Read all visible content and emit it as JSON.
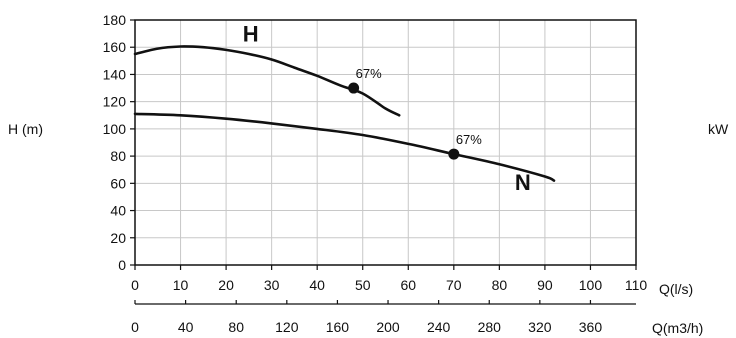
{
  "chart_data": {
    "type": "line",
    "title": "",
    "ylabel": "H (m)",
    "ylabel_right": "kW",
    "xlabel": "Q(l/s)",
    "xlabel_secondary": "Q(m3/h)",
    "xlim": [
      0,
      110
    ],
    "ylim": [
      0,
      180
    ],
    "x_ticks": [
      "0",
      "10",
      "20",
      "30",
      "40",
      "50",
      "60",
      "70",
      "80",
      "90",
      "100",
      "110"
    ],
    "y_ticks": [
      "0",
      "20",
      "40",
      "60",
      "80",
      "100",
      "120",
      "140",
      "160",
      "180"
    ],
    "secondary_x_ticks": [
      "0",
      "40",
      "80",
      "120",
      "160",
      "200",
      "240",
      "280",
      "320",
      "360"
    ],
    "grid": true,
    "series": [
      {
        "name": "H",
        "x": [
          0,
          5,
          10,
          15,
          20,
          25,
          30,
          35,
          40,
          45,
          50,
          55,
          58
        ],
        "y": [
          155,
          159,
          160.5,
          160,
          158,
          155,
          151,
          145,
          139,
          132,
          126,
          115,
          110
        ]
      },
      {
        "name": "N",
        "x": [
          0,
          10,
          20,
          30,
          40,
          50,
          60,
          70,
          80,
          90,
          92
        ],
        "y": [
          111,
          110,
          107.5,
          104,
          100,
          95.5,
          89,
          81.5,
          74,
          65,
          62
        ]
      }
    ],
    "annotations": [
      {
        "series": "H",
        "x": 48,
        "y": 130,
        "text": "67%"
      },
      {
        "series": "N",
        "x": 70,
        "y": 81.5,
        "text": "67%"
      }
    ]
  }
}
